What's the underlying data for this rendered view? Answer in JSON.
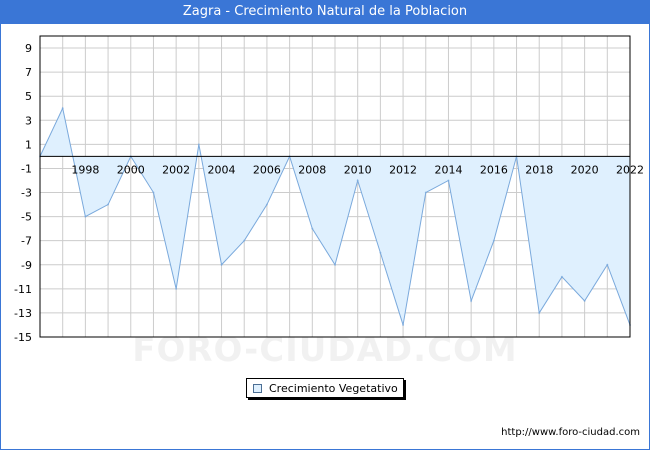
{
  "title": "Zagra - Crecimiento Natural de la Poblacion",
  "footer_url": "http://www.foro-ciudad.com",
  "watermark_text": "FORO-CIUDAD.COM",
  "colors": {
    "title_bg": "#3a76d6",
    "fill": "#dff0fe",
    "line": "#7aa9dc",
    "grid": "#cccccc"
  },
  "chart_data": {
    "type": "area",
    "title": "Zagra - Crecimiento Natural de la Poblacion",
    "xlabel": "",
    "ylabel": "",
    "x": [
      1996,
      1997,
      1998,
      1999,
      2000,
      2001,
      2002,
      2003,
      2004,
      2005,
      2006,
      2007,
      2008,
      2009,
      2010,
      2011,
      2012,
      2013,
      2014,
      2015,
      2016,
      2017,
      2018,
      2019,
      2020,
      2021,
      2022
    ],
    "series": [
      {
        "name": "Crecimiento Vegetativo",
        "values": [
          0,
          4,
          -5,
          -4,
          0,
          -3,
          -11,
          1,
          -9,
          -7,
          -4,
          0,
          -6,
          -9,
          -2,
          -8,
          -14,
          -3,
          -2,
          -12,
          -7,
          0,
          -13,
          -10,
          -12,
          -9,
          -14
        ]
      }
    ],
    "x_ticks": [
      "1998",
      "2000",
      "2002",
      "2004",
      "2006",
      "2008",
      "2010",
      "2012",
      "2014",
      "2016",
      "2018",
      "2020",
      "2022"
    ],
    "y_ticks": [
      "9",
      "7",
      "5",
      "3",
      "1",
      "-1",
      "-3",
      "-5",
      "-7",
      "-9",
      "-11",
      "-13",
      "-15"
    ],
    "xlim": [
      1996,
      2022
    ],
    "ylim": [
      -15,
      10
    ],
    "grid": true,
    "legend_position": "bottom-center"
  }
}
